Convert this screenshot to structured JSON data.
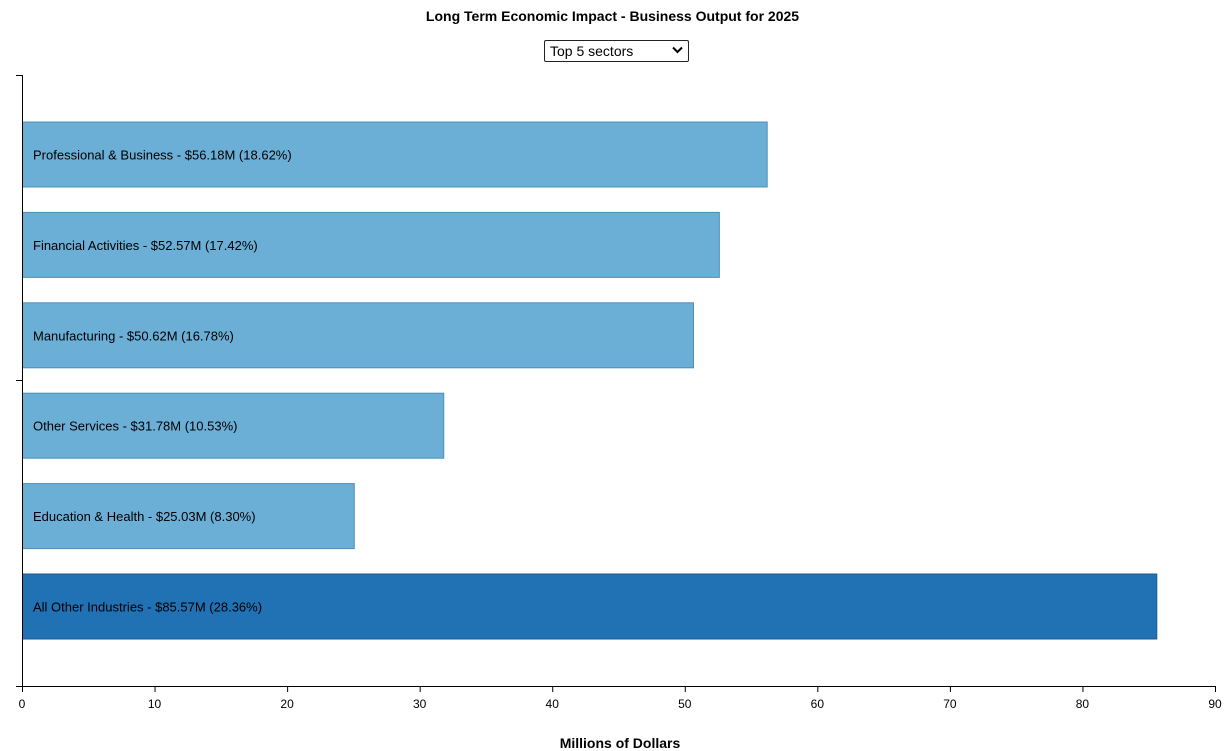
{
  "selector": {
    "value": "Top 5 sectors",
    "icon": "chevron-down-icon"
  },
  "colors": {
    "bar": "#6baed6",
    "bar_stroke": "#4a90b8",
    "bar_highlight": "#2171b5",
    "bar_highlight_stroke": "#1a5a94",
    "axis": "#000000"
  },
  "chart_data": {
    "type": "bar",
    "orientation": "horizontal",
    "title": "Long Term Economic Impact - Business Output for 2025",
    "xlabel": "Millions of Dollars",
    "ylabel": "",
    "xlim": [
      0,
      90
    ],
    "xticks": [
      0,
      10,
      20,
      30,
      40,
      50,
      60,
      70,
      80,
      90
    ],
    "grid": false,
    "categories": [
      "Professional & Business",
      "Financial Activities",
      "Manufacturing",
      "Other Services",
      "Education & Health",
      "All Other Industries"
    ],
    "values": [
      56.18,
      52.57,
      50.62,
      31.78,
      25.03,
      85.57
    ],
    "labels": [
      "Professional & Business - $56.18M (18.62%)",
      "Financial Activities - $52.57M (17.42%)",
      "Manufacturing - $50.62M (16.78%)",
      "Other Services - $31.78M (10.53%)",
      "Education & Health - $25.03M (8.30%)",
      "All Other Industries - $85.57M (28.36%)"
    ],
    "highlighted": [
      false,
      false,
      false,
      false,
      false,
      true
    ]
  }
}
